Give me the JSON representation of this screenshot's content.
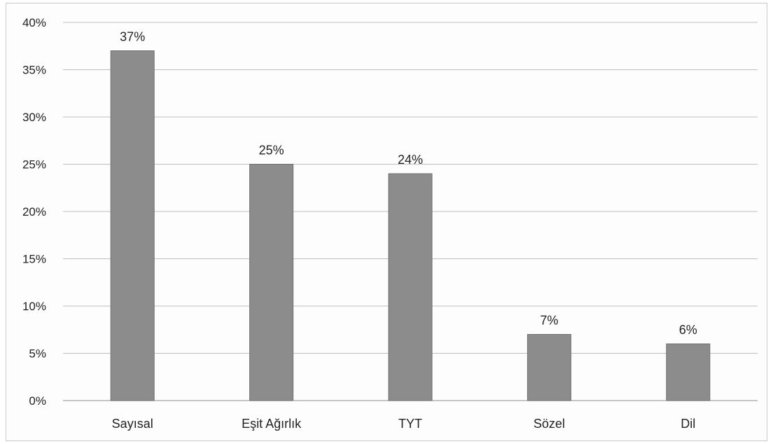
{
  "chart_data": {
    "type": "bar",
    "categories": [
      "Sayısal",
      "Eşit Ağırlık",
      "TYT",
      "Sözel",
      "Dil"
    ],
    "values": [
      37,
      25,
      24,
      7,
      6
    ],
    "data_labels": [
      "37%",
      "25%",
      "24%",
      "7%",
      "6%"
    ],
    "ylim": [
      0,
      40
    ],
    "yticks": [
      "0%",
      "5%",
      "10%",
      "15%",
      "20%",
      "25%",
      "30%",
      "35%",
      "40%"
    ],
    "ytick_values": [
      0,
      5,
      10,
      15,
      20,
      25,
      30,
      35,
      40
    ],
    "grid": true,
    "legend": "none",
    "title": "",
    "xlabel": "",
    "ylabel": "",
    "colors": {
      "bar": "#8c8c8c",
      "bar_edge": "#6f6f6f",
      "grid": "#bfbfbf",
      "axis": "#a6a6a6"
    }
  }
}
